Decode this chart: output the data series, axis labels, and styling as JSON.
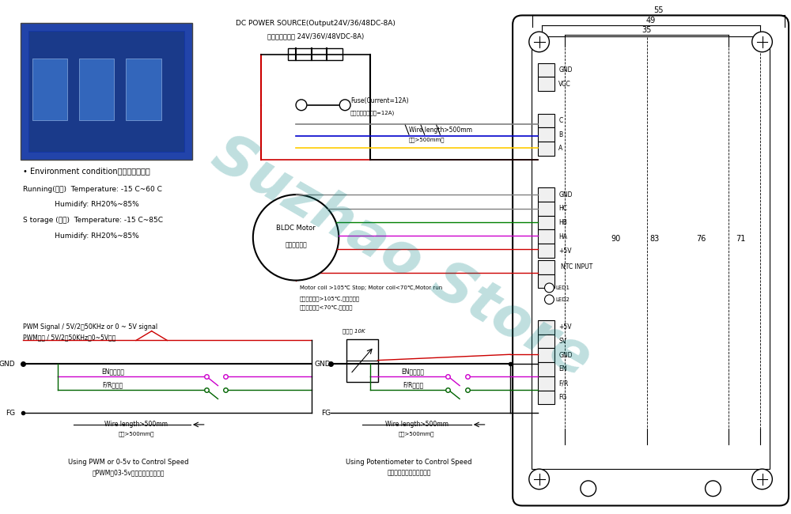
{
  "bg_color": "#ffffff",
  "watermark_text": "Suzhao Store",
  "watermark_color": "#20b2aa",
  "watermark_alpha": 0.25,
  "title_power": "DC POWER SOURCE(Output24V/36/48DC-8A)",
  "title_power_cn": "直流电源（输出 24V/36V/48VDC-8A)",
  "fuse_label": "Fuse(Current=12A)",
  "fuse_label_cn": "保险丝（电流容量=12A)",
  "motor_label": "BLDC Motor",
  "motor_label_cn": "直流无刷电机",
  "wire_label": "Wire length>500mm",
  "wire_label_cn": "线长>500mm时",
  "ntc_label": "Motor coil >105℃ Stop; Motor coil<70℃,Motor run",
  "ntc_label_cn": "电机线圈温度>105℃,电机停机；",
  "ntc_label_cn2": "电机线圈温度<70℃,电机工作",
  "env_title": "• Environment condition（环境条件）：",
  "env_line1": "Running(运输)  Temperature: -15 C~60 C",
  "env_line2": "              Humidify: RH20%~85%",
  "env_line3": "S torage (保存)  Temperature: -15 C~85C",
  "env_line4": "              Humidify: RH20%~85%",
  "pwm_label1": "PWM Signal / 5V/2⁲50KHz or 0 ~ 5V signal",
  "pwm_label2": "PWM信号 / 5V/2⁲50KHz至0~5V电压",
  "gnd_label": "GND",
  "fg_label": "FG",
  "en_label": "EN电机启停",
  "fr_label": "F/R正反转",
  "caption1a": "Using PWM or 0-5v to Control Speed",
  "caption1b": "用PWM戆03-5v控制转速的接线方法",
  "caption2a": "Using Potentiometer to Control Speed",
  "caption2b": "电位器控制转速的接线方法",
  "connector_labels_top": [
    "GND",
    "VCC"
  ],
  "connector_labels_mid": [
    "C",
    "B",
    "A"
  ],
  "connector_labels_hall": [
    "GND",
    "HC",
    "HB",
    "HA",
    "+5V"
  ],
  "connector_labels_ntc": [
    "NTC INPUT"
  ],
  "connector_labels_led": [
    "LED1",
    "LED2"
  ],
  "connector_labels_ctrl": [
    "+5V",
    "SV",
    "GND",
    "EN",
    "F/R",
    "FG"
  ],
  "dim_55": "55",
  "dim_49": "49",
  "dim_35": "35",
  "dim_90": "90",
  "dim_83": "83",
  "dim_76": "76",
  "dim_71": "71",
  "gnd_wire2": "GND",
  "fr_wire2": "F/R正反转",
  "en_wire2": "EN电机启停",
  "fg_wire2": "FG",
  "wire2_label1": "Wire length>500mm",
  "wire2_label1_cn": "线长>500mm时",
  "pot_label": "电位器 10K",
  "colors": {
    "black": "#000000",
    "red": "#cc0000",
    "green": "#006400",
    "blue": "#0000cc",
    "gray": "#888888",
    "light_gray": "#cccccc",
    "yellow": "#cccc00",
    "magenta": "#cc00cc",
    "dark_green": "#005500",
    "teal": "#008080"
  }
}
